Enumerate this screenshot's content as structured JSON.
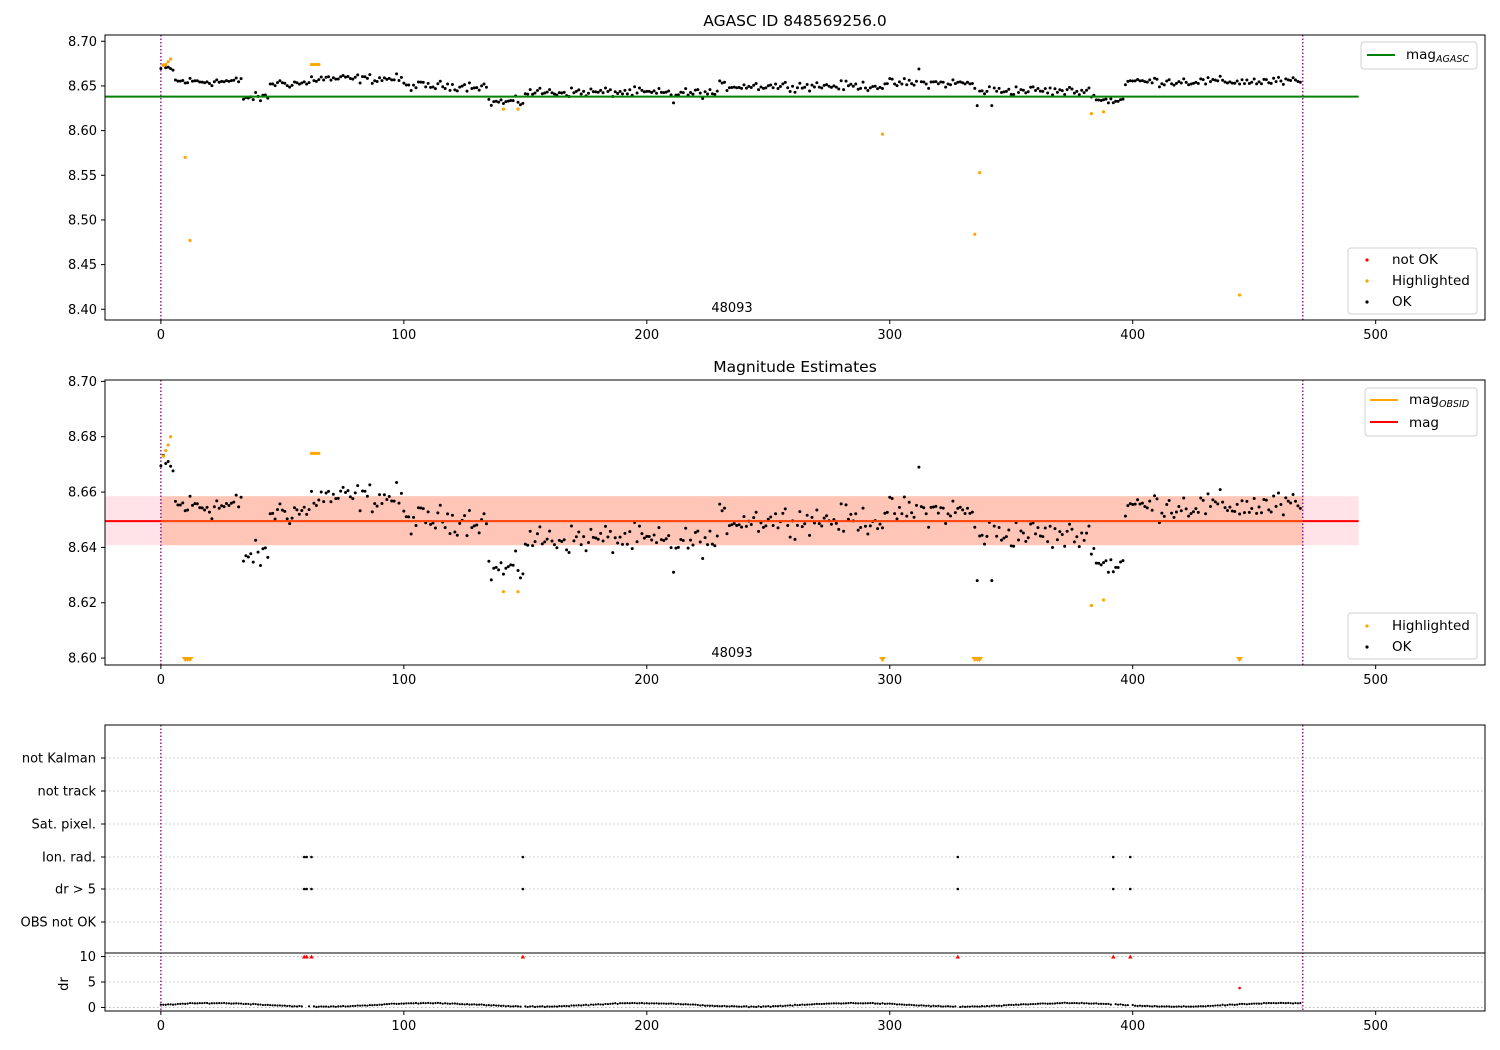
{
  "figure": {
    "colors": {
      "agasc_line": "#008000",
      "mag_line": "#ff0000",
      "obsid_line": "#ffa500",
      "ok": "#000000",
      "highlighted": "#ffa500",
      "not_ok": "#ff0000",
      "obs_boundary": "#800080",
      "band_fill": "#ff9f7a",
      "band_outer": "#ffc0cb"
    }
  },
  "chart_data": [
    {
      "type": "scatter",
      "title": "AGASC ID 848569256.0",
      "xlim": [
        -23,
        545
      ],
      "ylim": [
        8.388,
        8.707
      ],
      "xticks": [
        "0",
        "100",
        "200",
        "300",
        "400",
        "500"
      ],
      "yticks": [
        "8.40",
        "8.45",
        "8.50",
        "8.55",
        "8.60",
        "8.65",
        "8.70"
      ],
      "grid": false,
      "mag_agasc": 8.638,
      "obsid_label": "48093",
      "obs_boundaries": [
        0,
        470
      ],
      "legend_lines": [
        {
          "label": "mag",
          "subscript": "AGASC",
          "color": "#008000"
        }
      ],
      "legend_points": [
        {
          "label": "not OK",
          "color": "#ff0000"
        },
        {
          "label": "Highlighted",
          "color": "#ffa500"
        },
        {
          "label": "OK",
          "color": "#000000"
        }
      ],
      "highlighted_points": [
        [
          1,
          8.673
        ],
        [
          2,
          8.674
        ],
        [
          3,
          8.677
        ],
        [
          4,
          8.68
        ],
        [
          10,
          8.57
        ],
        [
          12,
          8.477
        ],
        [
          62,
          8.674
        ],
        [
          63,
          8.674
        ],
        [
          64,
          8.674
        ],
        [
          65,
          8.674
        ],
        [
          141,
          8.624
        ],
        [
          147,
          8.624
        ],
        [
          297,
          8.596
        ],
        [
          335,
          8.484
        ],
        [
          337,
          8.553
        ],
        [
          383,
          8.619
        ],
        [
          388,
          8.621
        ],
        [
          444,
          8.416
        ]
      ]
    },
    {
      "type": "scatter",
      "title": "Magnitude Estimates",
      "xlim": [
        -23,
        545
      ],
      "ylim": [
        8.5975,
        8.7005
      ],
      "xticks": [
        "0",
        "100",
        "200",
        "300",
        "400",
        "500"
      ],
      "yticks": [
        "8.60",
        "8.62",
        "8.64",
        "8.66",
        "8.68",
        "8.70"
      ],
      "grid": false,
      "mag": 8.6495,
      "mag_band": [
        8.6408,
        8.6585
      ],
      "obsid_label": "48093",
      "obs_boundaries": [
        0,
        470
      ],
      "legend_lines": [
        {
          "label": "mag",
          "subscript": "OBSID",
          "color": "#ffa500"
        },
        {
          "label": "mag",
          "subscript": "",
          "color": "#ff0000"
        }
      ],
      "legend_points": [
        {
          "label": "Highlighted",
          "color": "#ffa500"
        },
        {
          "label": "OK",
          "color": "#000000"
        }
      ],
      "highlighted_points": [
        [
          1,
          8.673
        ],
        [
          2,
          8.675
        ],
        [
          3,
          8.677
        ],
        [
          4,
          8.68
        ],
        [
          62,
          8.674
        ],
        [
          63,
          8.674
        ],
        [
          64,
          8.674
        ],
        [
          65,
          8.674
        ],
        [
          141,
          8.624
        ],
        [
          147,
          8.624
        ],
        [
          383,
          8.619
        ],
        [
          388,
          8.621
        ]
      ],
      "off_scale_points": [
        10,
        11,
        12,
        297,
        335,
        336,
        337,
        444
      ]
    },
    {
      "type": "scatter",
      "title": "",
      "xlim": [
        -23,
        545
      ],
      "xticks": [
        "0",
        "100",
        "200",
        "300",
        "400",
        "500"
      ],
      "grid": true,
      "flag_rows": [
        "not Kalman",
        "not track",
        "Sat. pixel.",
        "Ion. rad.",
        "dr > 5",
        "OBS not OK"
      ],
      "flag_points": {
        "Ion. rad.": [
          59,
          60,
          62,
          149,
          328,
          392,
          399
        ],
        "dr > 5": [
          59,
          60,
          62,
          149,
          328,
          392,
          399
        ]
      },
      "dr_ylabel": "dr",
      "dr_yticks": [
        "0",
        "5",
        "10"
      ],
      "dr_ylim": [
        -0.7,
        10.7
      ],
      "dr_capped_points": [
        59,
        60,
        62,
        149,
        328,
        392,
        399
      ],
      "dr_outlier_points": [
        [
          444,
          3.8
        ]
      ],
      "obs_boundaries": [
        0,
        470
      ]
    }
  ]
}
